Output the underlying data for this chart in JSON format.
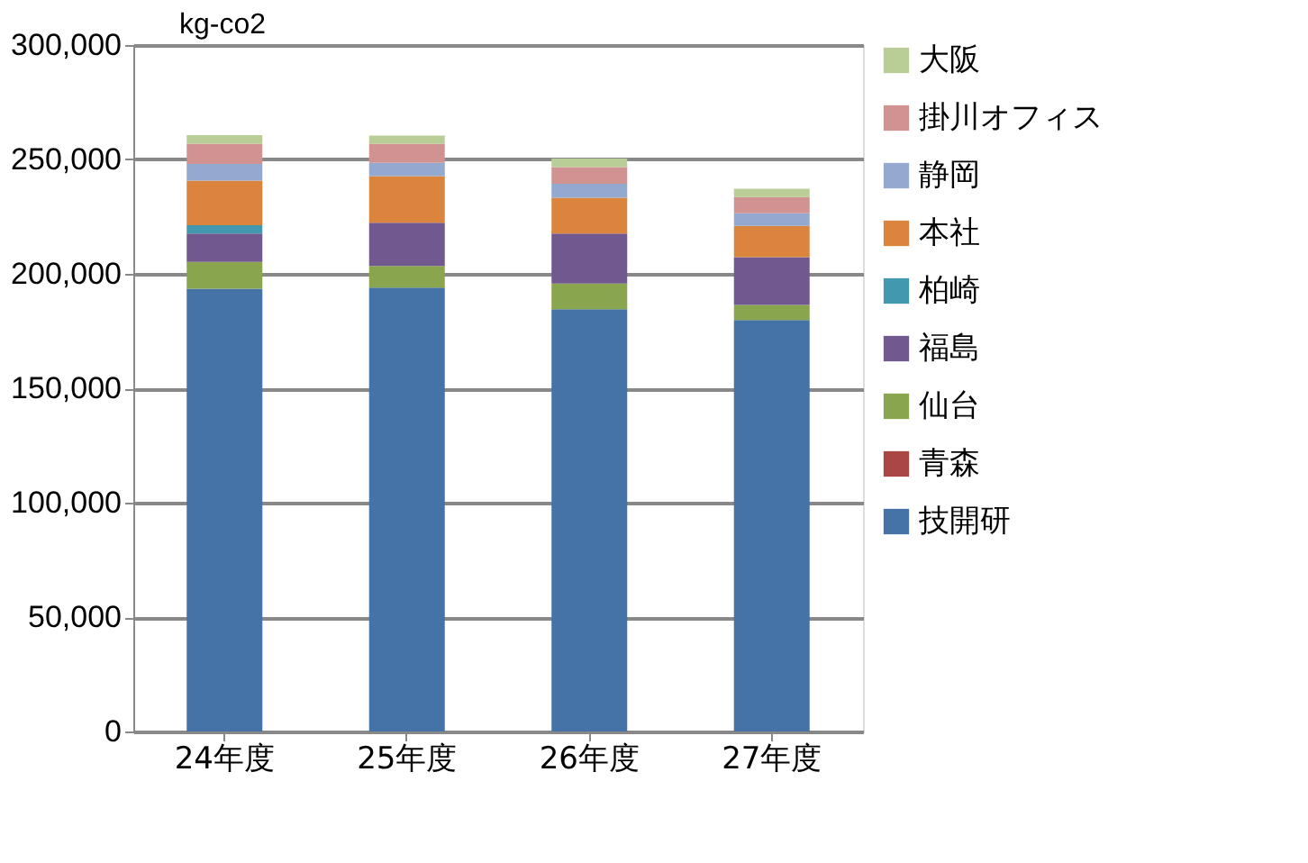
{
  "chart_data": {
    "type": "bar",
    "stacked": true,
    "ylabel": "kg-co2",
    "categories": [
      "24年度",
      "25年度",
      "26年度",
      "27年度"
    ],
    "series": [
      {
        "name": "技開研",
        "color": "#4572a7",
        "values": [
          193500,
          194000,
          184500,
          179800
        ]
      },
      {
        "name": "青森",
        "color": "#aa4643",
        "values": [
          0,
          0,
          0,
          0
        ]
      },
      {
        "name": "仙台",
        "color": "#89a54e",
        "values": [
          11700,
          9400,
          11300,
          6600
        ]
      },
      {
        "name": "福島",
        "color": "#71588f",
        "values": [
          12400,
          18900,
          21800,
          20900
        ]
      },
      {
        "name": "柏崎",
        "color": "#4198af",
        "values": [
          3700,
          0,
          0,
          0
        ]
      },
      {
        "name": "本社",
        "color": "#db843d",
        "values": [
          19400,
          20400,
          15700,
          13700
        ]
      },
      {
        "name": "静岡",
        "color": "#93a9cf",
        "values": [
          7300,
          5800,
          6100,
          5500
        ]
      },
      {
        "name": "掛川オフィス",
        "color": "#d19392",
        "values": [
          8900,
          8400,
          7300,
          7100
        ]
      },
      {
        "name": "大阪",
        "color": "#b9cd96",
        "values": [
          3700,
          3500,
          3700,
          3600
        ]
      }
    ],
    "ylim": [
      0,
      300000
    ],
    "yticks": [
      0,
      {
        "value": 50000,
        "label": "50,000"
      },
      {
        "value": 100000,
        "label": "100,000"
      },
      {
        "value": 150000,
        "label": "150,000"
      },
      {
        "value": 200000,
        "label": "200,000"
      },
      {
        "value": 250000,
        "label": "250,000"
      },
      {
        "value": 300000,
        "label": "300,000"
      }
    ],
    "grid": "y",
    "legend": "right"
  }
}
